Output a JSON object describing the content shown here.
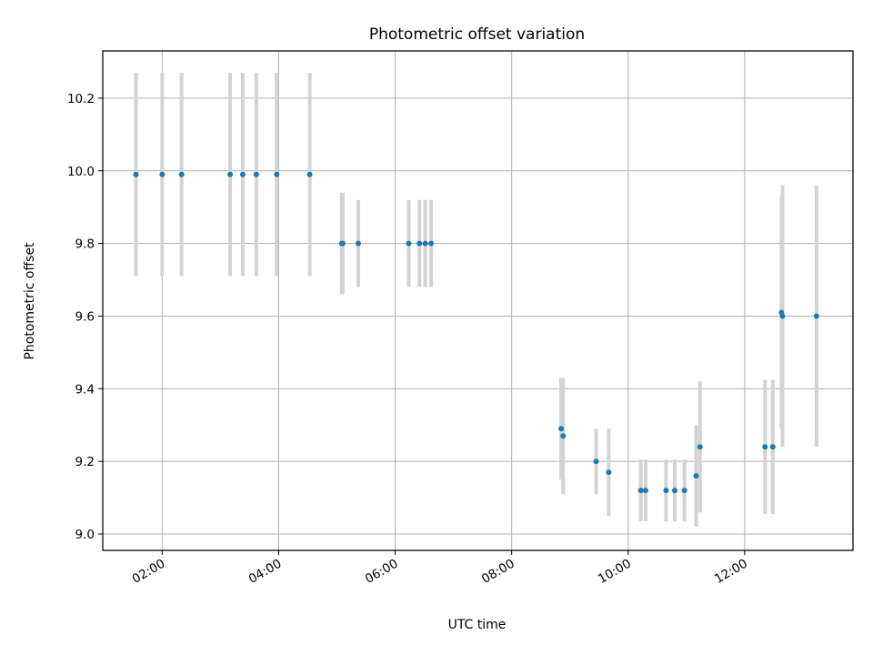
{
  "chart_data": {
    "type": "scatter",
    "title": "Photometric offset variation",
    "xlabel": "UTC time",
    "ylabel": "Photometric offset",
    "x_ticks": [
      "02:00",
      "04:00",
      "06:00",
      "08:00",
      "10:00",
      "12:00"
    ],
    "x_tick_hours": [
      2,
      4,
      6,
      8,
      10,
      12
    ],
    "y_ticks": [
      "9.0",
      "9.2",
      "9.4",
      "9.6",
      "9.8",
      "10.0",
      "10.2"
    ],
    "y_tick_values": [
      9.0,
      9.2,
      9.4,
      9.6,
      9.8,
      10.0,
      10.2
    ],
    "xlim_hours": [
      0.98,
      13.86
    ],
    "ylim": [
      8.955,
      10.33
    ],
    "grid": true,
    "legend": "none",
    "colors": {
      "marker": "#1f77b4",
      "errorbar": "#d3d3d3",
      "grid": "#b0b0b0"
    },
    "points": [
      {
        "t": "01:33",
        "y": 9.99,
        "err": 0.28
      },
      {
        "t": "02:00",
        "y": 9.99,
        "err": 0.28
      },
      {
        "t": "02:20",
        "y": 9.99,
        "err": 0.28
      },
      {
        "t": "03:10",
        "y": 9.99,
        "err": 0.28
      },
      {
        "t": "03:23",
        "y": 9.99,
        "err": 0.28
      },
      {
        "t": "03:37",
        "y": 9.99,
        "err": 0.28
      },
      {
        "t": "03:58",
        "y": 9.99,
        "err": 0.28
      },
      {
        "t": "04:32",
        "y": 9.99,
        "err": 0.28
      },
      {
        "t": "05:05",
        "y": 9.8,
        "err": 0.14
      },
      {
        "t": "05:06",
        "y": 9.8,
        "err": 0.14
      },
      {
        "t": "05:22",
        "y": 9.8,
        "err": 0.12
      },
      {
        "t": "06:14",
        "y": 9.8,
        "err": 0.12
      },
      {
        "t": "06:25",
        "y": 9.8,
        "err": 0.12
      },
      {
        "t": "06:31",
        "y": 9.8,
        "err": 0.12
      },
      {
        "t": "06:37",
        "y": 9.8,
        "err": 0.12
      },
      {
        "t": "08:51",
        "y": 9.29,
        "err": 0.14
      },
      {
        "t": "08:53",
        "y": 9.27,
        "err": 0.16
      },
      {
        "t": "09:27",
        "y": 9.2,
        "err": 0.09
      },
      {
        "t": "09:40",
        "y": 9.17,
        "err": 0.12
      },
      {
        "t": "10:13",
        "y": 9.12,
        "err": 0.085
      },
      {
        "t": "10:18",
        "y": 9.12,
        "err": 0.085
      },
      {
        "t": "10:39",
        "y": 9.12,
        "err": 0.085
      },
      {
        "t": "10:48",
        "y": 9.12,
        "err": 0.085
      },
      {
        "t": "10:58",
        "y": 9.12,
        "err": 0.085
      },
      {
        "t": "11:10",
        "y": 9.16,
        "err": 0.14
      },
      {
        "t": "11:14",
        "y": 9.24,
        "err": 0.18
      },
      {
        "t": "12:21",
        "y": 9.24,
        "err": 0.185
      },
      {
        "t": "12:29",
        "y": 9.24,
        "err": 0.185
      },
      {
        "t": "12:38",
        "y": 9.61,
        "err": 0.32
      },
      {
        "t": "12:39",
        "y": 9.6,
        "err": 0.36
      },
      {
        "t": "13:14",
        "y": 9.6,
        "err": 0.36
      }
    ]
  }
}
